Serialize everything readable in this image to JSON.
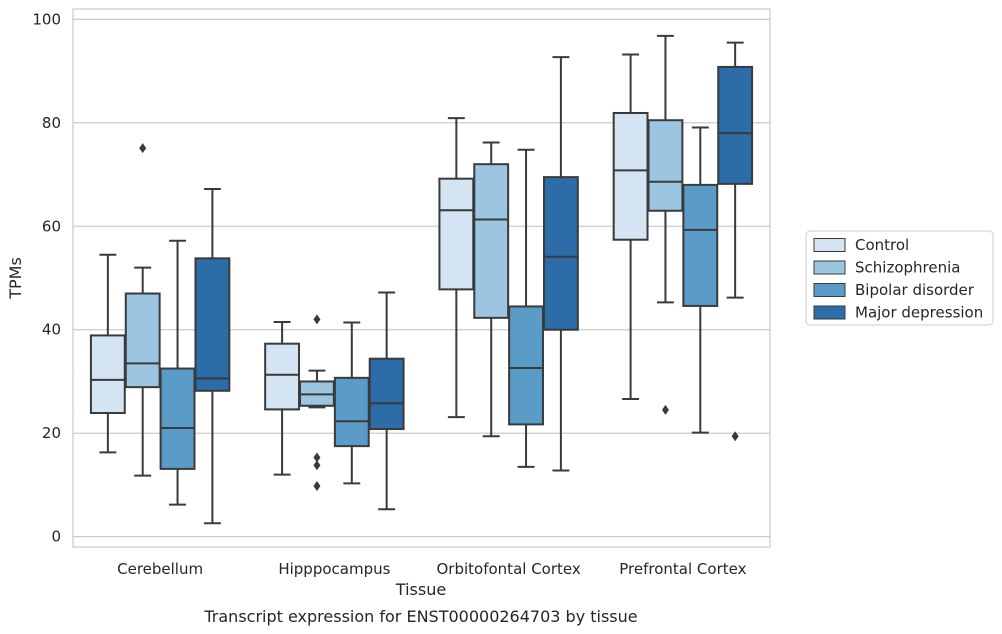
{
  "caption": "Transcript expression for ENST00000264703 by tissue",
  "chart_data": {
    "type": "boxplot",
    "xlabel": "Tissue",
    "ylabel": "TPMs",
    "ylim": [
      -2,
      102
    ],
    "yticks": [
      0,
      20,
      40,
      60,
      80,
      100
    ],
    "grid": "horizontal",
    "legend_position": "right",
    "categories": [
      "Cerebellum",
      "Hipppocampus",
      "Orbitofontal Cortex",
      "Prefrontal Cortex"
    ],
    "series": [
      {
        "name": "Control",
        "color": "#d4e4f2",
        "boxes": [
          {
            "whislo": 16.3,
            "q1": 23.9,
            "med": 30.3,
            "q3": 38.9,
            "whishi": 54.5,
            "fliers": []
          },
          {
            "whislo": 12.0,
            "q1": 24.6,
            "med": 31.3,
            "q3": 37.3,
            "whishi": 41.5,
            "fliers": []
          },
          {
            "whislo": 23.1,
            "q1": 47.8,
            "med": 63.1,
            "q3": 69.2,
            "whishi": 80.9,
            "fliers": []
          },
          {
            "whislo": 26.6,
            "q1": 57.4,
            "med": 70.8,
            "q3": 81.9,
            "whishi": 93.2,
            "fliers": []
          }
        ]
      },
      {
        "name": "Schizophrenia",
        "color": "#9bc5e0",
        "boxes": [
          {
            "whislo": 11.8,
            "q1": 28.9,
            "med": 33.5,
            "q3": 47.0,
            "whishi": 52.0,
            "fliers": [
              75.1
            ]
          },
          {
            "whislo": 25.0,
            "q1": 25.3,
            "med": 27.5,
            "q3": 30.0,
            "whishi": 32.1,
            "fliers": [
              42.0,
              15.3,
              13.8,
              9.8
            ]
          },
          {
            "whislo": 19.4,
            "q1": 42.3,
            "med": 61.3,
            "q3": 72.0,
            "whishi": 76.2,
            "fliers": []
          },
          {
            "whislo": 45.3,
            "q1": 63.0,
            "med": 68.6,
            "q3": 80.5,
            "whishi": 96.8,
            "fliers": [
              24.5
            ]
          }
        ]
      },
      {
        "name": "Bipolar disorder",
        "color": "#5a9bc7",
        "boxes": [
          {
            "whislo": 6.2,
            "q1": 13.1,
            "med": 21.0,
            "q3": 32.5,
            "whishi": 57.2,
            "fliers": []
          },
          {
            "whislo": 10.3,
            "q1": 17.5,
            "med": 22.3,
            "q3": 30.7,
            "whishi": 41.4,
            "fliers": []
          },
          {
            "whislo": 13.5,
            "q1": 21.7,
            "med": 32.6,
            "q3": 44.5,
            "whishi": 74.8,
            "fliers": []
          },
          {
            "whislo": 20.1,
            "q1": 44.6,
            "med": 59.3,
            "q3": 68.0,
            "whishi": 79.1,
            "fliers": []
          }
        ]
      },
      {
        "name": "Major depression",
        "color": "#2c6ca8",
        "boxes": [
          {
            "whislo": 2.6,
            "q1": 28.2,
            "med": 30.6,
            "q3": 53.8,
            "whishi": 67.2,
            "fliers": []
          },
          {
            "whislo": 5.3,
            "q1": 20.8,
            "med": 25.8,
            "q3": 34.4,
            "whishi": 47.2,
            "fliers": []
          },
          {
            "whislo": 12.8,
            "q1": 40.0,
            "med": 54.1,
            "q3": 69.5,
            "whishi": 92.7,
            "fliers": []
          },
          {
            "whislo": 46.2,
            "q1": 68.2,
            "med": 78.0,
            "q3": 90.8,
            "whishi": 95.5,
            "fliers": [
              19.4
            ]
          }
        ]
      }
    ]
  }
}
